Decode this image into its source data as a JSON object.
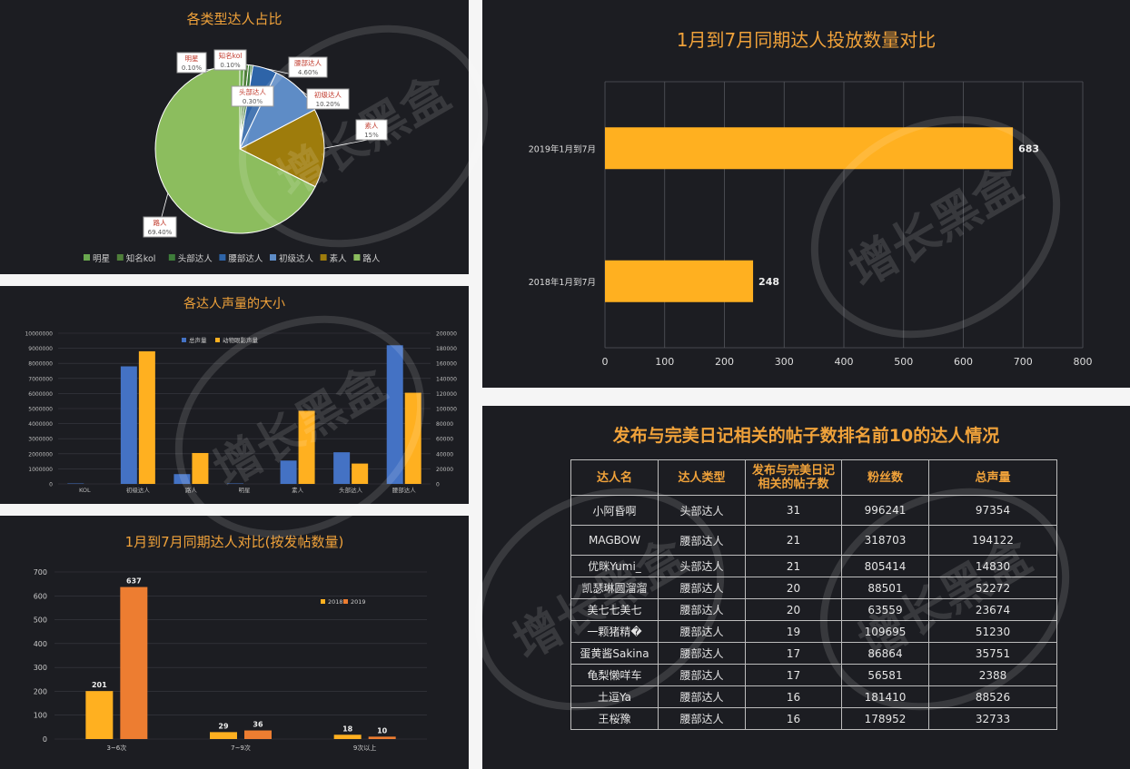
{
  "pie_panel": {
    "title": "各类型达人占比"
  },
  "bar2_panel": {
    "title": "各达人声量的大小"
  },
  "bar3_panel": {
    "title": "1月到7月同期达人对比(按发帖数量)"
  },
  "hbar_panel": {
    "title": "1月到7月同期达人投放数量对比"
  },
  "table_panel": {
    "title": "发布与完美日记相关的帖子数排名前10的达人情况",
    "headers": [
      "达人名",
      "达人类型",
      "发布与完美日记相关的帖子数",
      "粉丝数",
      "总声量"
    ],
    "header_line1": "发布与完美日记",
    "header_line2": "相关的帖子数",
    "rows": [
      [
        "小阿昏啊",
        "头部达人",
        "31",
        "996241",
        "97354"
      ],
      [
        "MAGBOW",
        "腰部达人",
        "21",
        "318703",
        "194122"
      ],
      [
        "优眯Yumi_",
        "头部达人",
        "21",
        "805414",
        "14830"
      ],
      [
        "凯瑟琳圆溜溜",
        "腰部达人",
        "20",
        "88501",
        "52272"
      ],
      [
        "美七七美七",
        "腰部达人",
        "20",
        "63559",
        "23674"
      ],
      [
        "一颗猪精�",
        "腰部达人",
        "19",
        "109695",
        "51230"
      ],
      [
        "蛋黄酱Sakina",
        "腰部达人",
        "17",
        "86864",
        "35751"
      ],
      [
        "龟梨懒咩车",
        "腰部达人",
        "17",
        "56581",
        "2388"
      ],
      [
        "土逗Ya",
        "腰部达人",
        "16",
        "181410",
        "88526"
      ],
      [
        "王桜豫",
        "腰部达人",
        "16",
        "178952",
        "32733"
      ]
    ]
  },
  "watermark": {
    "text": "增长黑盒"
  },
  "colors": {
    "background": "#1c1d22",
    "title": "#f0a23a",
    "orange": "#ffb020",
    "dark_orange": "#ed7d31",
    "blue": "#4472c4",
    "pie_green": "#8cbd5e",
    "pie_blue": "#2e64a8",
    "pie_olive": "#9e7c0c"
  },
  "chart_data": [
    {
      "id": "pie",
      "type": "pie",
      "title": "各类型达人占比",
      "slices": [
        {
          "name": "明星",
          "label": "明星",
          "pct": "0.10%",
          "value": 0.1
        },
        {
          "name": "知名kol",
          "label": "知名kol",
          "pct": "0.10%",
          "value": 0.1
        },
        {
          "name": "头部达人",
          "label": "头部达人",
          "pct": "0.30%",
          "value": 0.3
        },
        {
          "name": "腰部达人",
          "label": "腰部达人",
          "pct": "4.60%",
          "value": 4.6
        },
        {
          "name": "初级达人",
          "label": "初级达人",
          "pct": "10.20%",
          "value": 10.2
        },
        {
          "name": "素人",
          "label": "素人",
          "pct": "15%",
          "value": 15
        },
        {
          "name": "路人",
          "label": "路人",
          "pct": "69.40%",
          "value": 69.4
        }
      ],
      "legend": [
        "明星",
        "知名kol",
        "头部达人",
        "腰部达人",
        "初级达人",
        "素人",
        "路人"
      ],
      "legend_position": "bottom"
    },
    {
      "id": "volume",
      "type": "bar",
      "title": "各达人声量的大小",
      "categories": [
        "KOL",
        "初级达人",
        "路人",
        "明星",
        "素人",
        "头部达人",
        "腰部达人"
      ],
      "series": [
        {
          "name": "总声量",
          "axis": "left",
          "values": [
            30000,
            7800000,
            650000,
            30000,
            1550000,
            2100000,
            9200000
          ]
        },
        {
          "name": "动物眼影声量",
          "axis": "right",
          "values": [
            0,
            176000,
            41000,
            0,
            97000,
            27000,
            121000
          ]
        }
      ],
      "y_left_ticks": [
        "0",
        "1000000",
        "2000000",
        "3000000",
        "4000000",
        "5000000",
        "6000000",
        "7000000",
        "8000000",
        "9000000",
        "10000000"
      ],
      "y_right_ticks": [
        "0",
        "20000",
        "40000",
        "60000",
        "80000",
        "100000",
        "120000",
        "140000",
        "160000",
        "180000",
        "200000"
      ],
      "ylim_left": [
        0,
        10000000
      ],
      "ylim_right": [
        0,
        200000
      ],
      "legend_position": "top",
      "grid": true
    },
    {
      "id": "posts",
      "type": "bar",
      "title": "1月到7月同期达人对比(按发帖数量)",
      "categories": [
        "3~6次",
        "7~9次",
        "9次以上"
      ],
      "series": [
        {
          "name": "2018",
          "values": [
            201,
            29,
            18
          ]
        },
        {
          "name": "2019",
          "values": [
            637,
            36,
            10
          ]
        }
      ],
      "y_ticks": [
        "0",
        "100",
        "200",
        "300",
        "400",
        "500",
        "600",
        "700"
      ],
      "ylim": [
        0,
        700
      ],
      "legend_position": "right",
      "grid": true
    },
    {
      "id": "launch",
      "type": "bar",
      "orientation": "horizontal",
      "title": "1月到7月同期达人投放数量对比",
      "categories": [
        "2019年1月到7月",
        "2018年1月到7月"
      ],
      "values": [
        683,
        248
      ],
      "x_ticks": [
        "0",
        "100",
        "200",
        "300",
        "400",
        "500",
        "600",
        "700",
        "800"
      ],
      "xlim": [
        0,
        800
      ],
      "grid": true
    }
  ]
}
